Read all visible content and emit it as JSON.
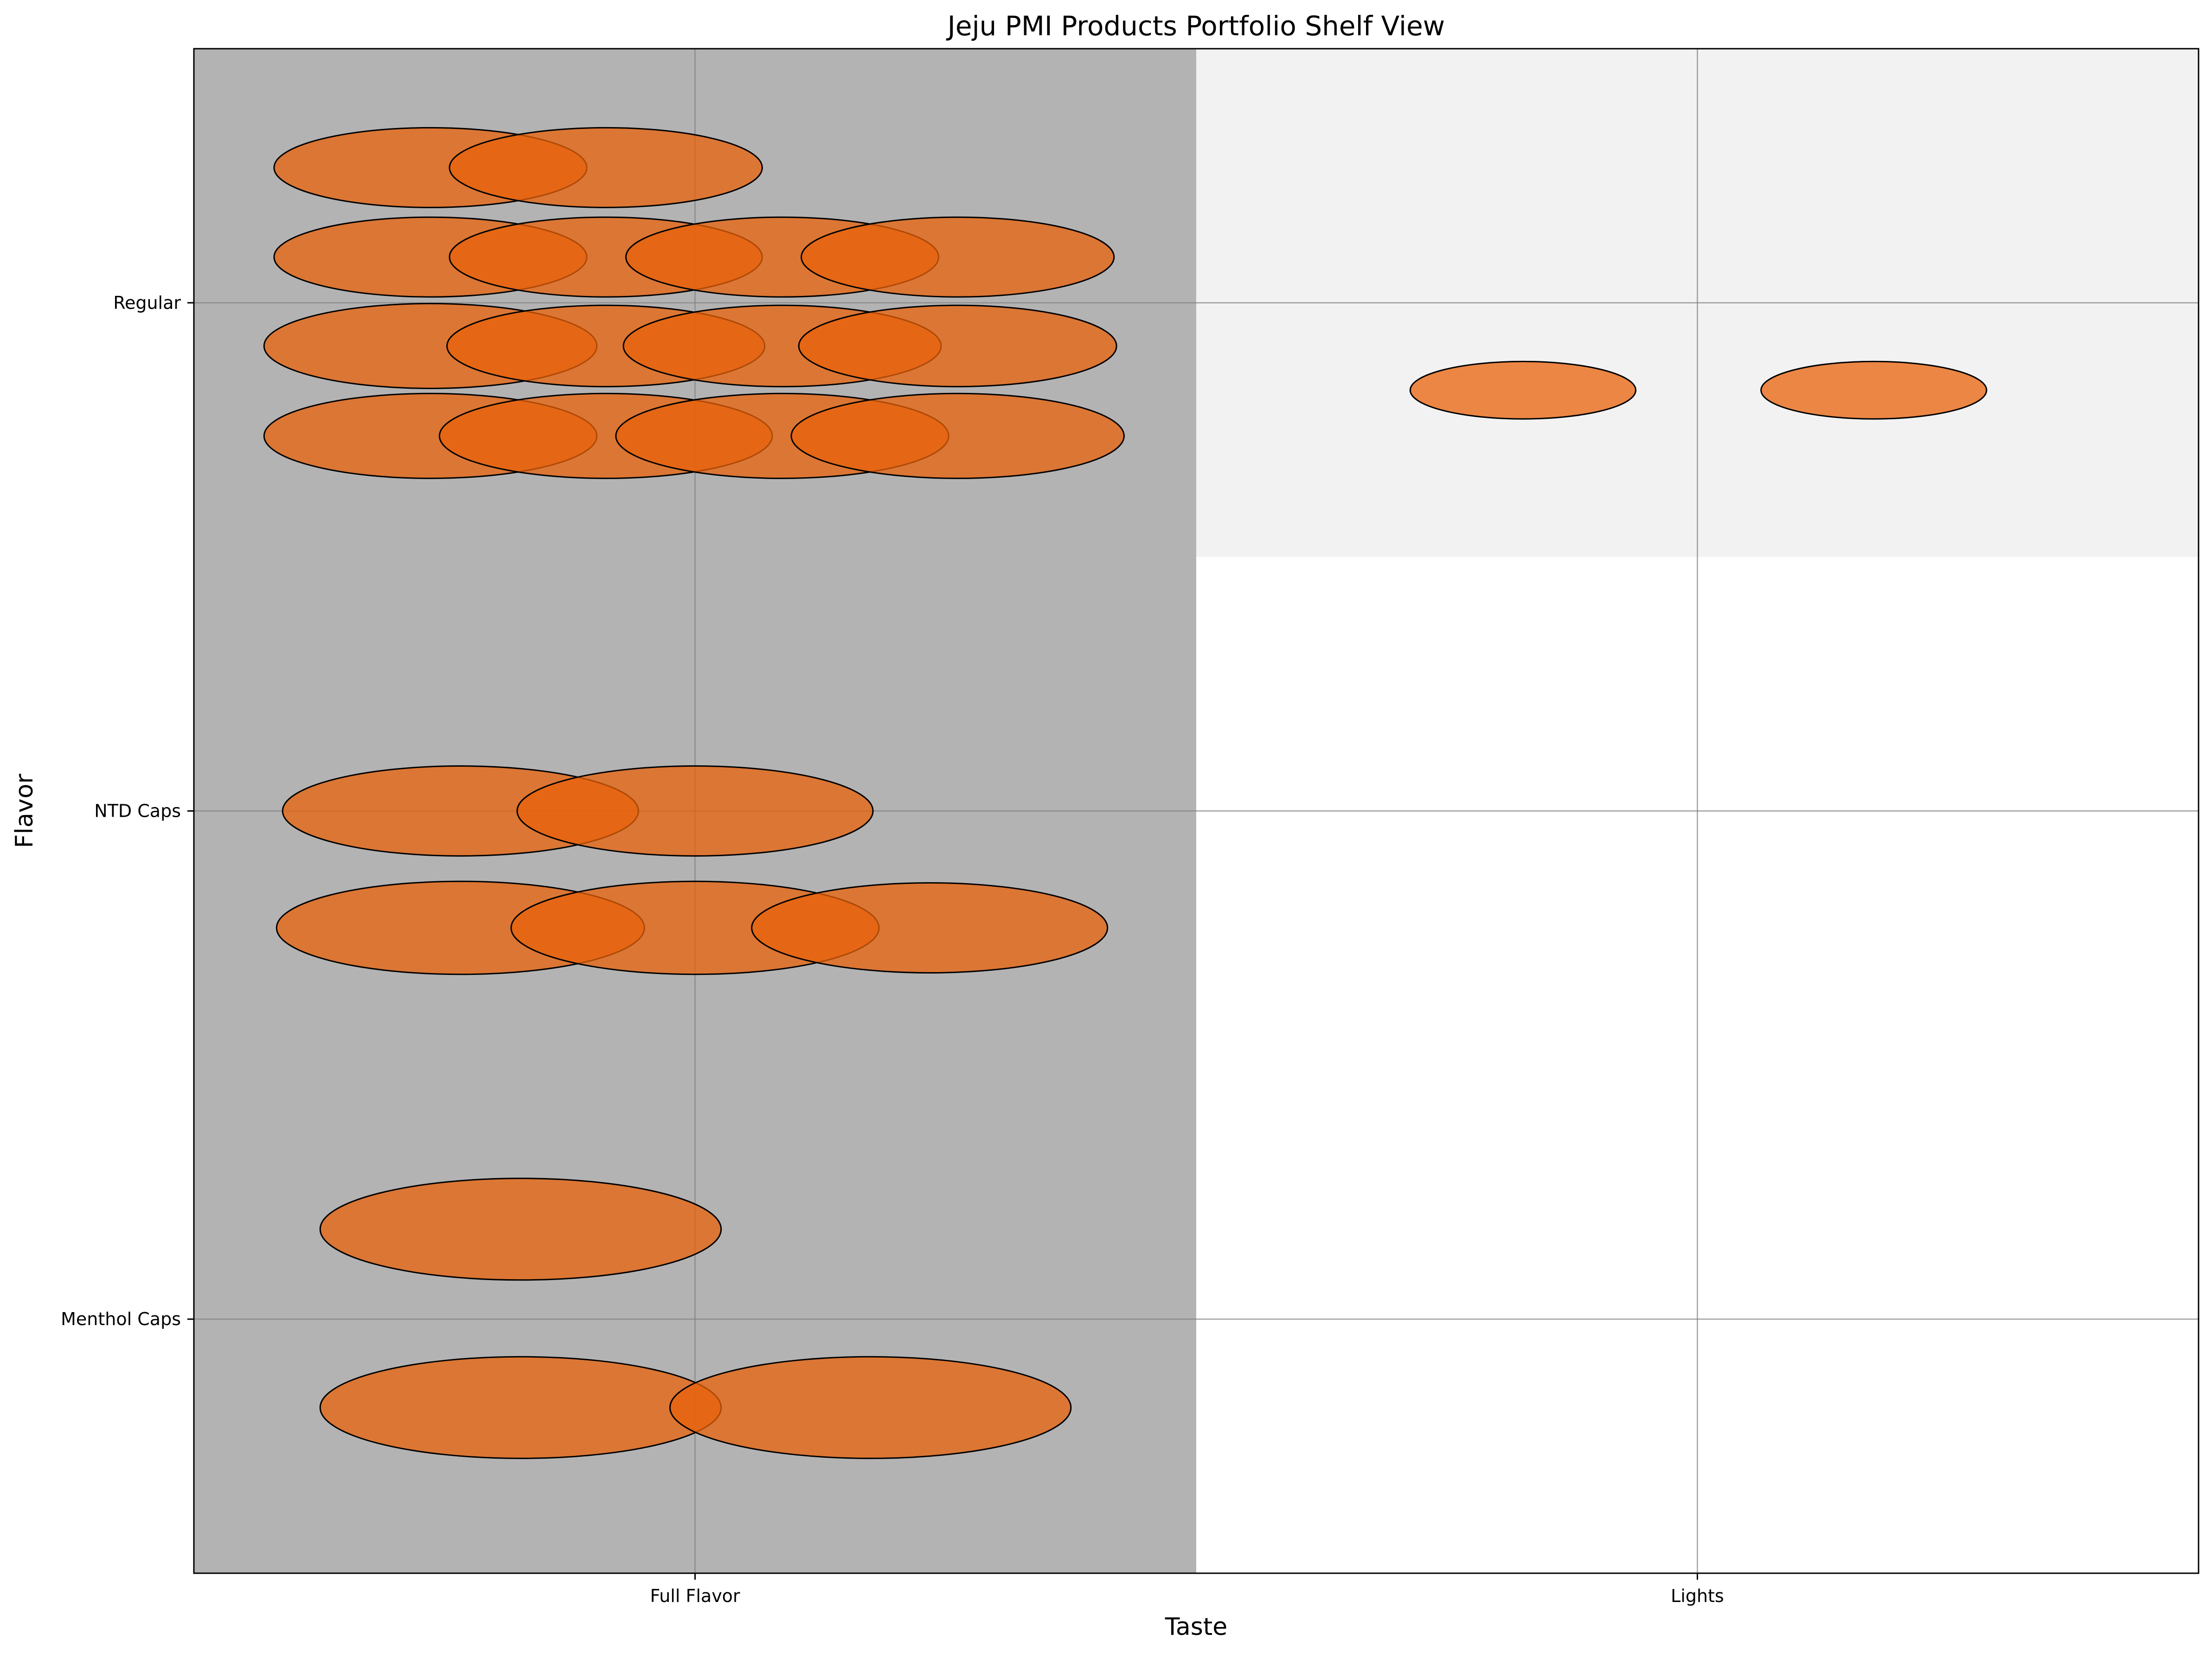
{
  "chart_data": {
    "type": "scatter",
    "title": "Jeju PMI Products Portfolio Shelf View",
    "xlabel": "Taste",
    "ylabel": "Flavor",
    "x_categories": [
      "Full Flavor",
      "Lights"
    ],
    "y_categories": [
      "Menthol Caps",
      "NTD Caps",
      "Regular"
    ],
    "xlim": [
      -0.5,
      1.5
    ],
    "ylim": [
      -0.5,
      2.5
    ],
    "grid": true,
    "colors": {
      "marker_fill": "#e8620a",
      "marker_edge": "#000000",
      "full_flavor_background": "#b3b3b3",
      "lights_regular_background": "#f2f2f2",
      "plot_background": "#ffffff",
      "grid": "#808080"
    },
    "background_regions": [
      {
        "x_range": [
          -0.5,
          0.5
        ],
        "y_range": [
          -0.5,
          2.5
        ],
        "color": "#b3b3b3"
      },
      {
        "x_range": [
          0.5,
          1.5
        ],
        "y_range": [
          1.5,
          2.5
        ],
        "color": "#f2f2f2"
      }
    ],
    "products": [
      {
        "taste": "Full Flavor",
        "flavor": "Regular",
        "x": -0.264,
        "y": 2.266,
        "w": 0.312,
        "h": 0.157,
        "alpha": 0.75
      },
      {
        "taste": "Full Flavor",
        "flavor": "Regular",
        "x": -0.089,
        "y": 2.266,
        "w": 0.312,
        "h": 0.157,
        "alpha": 0.75
      },
      {
        "taste": "Full Flavor",
        "flavor": "Regular",
        "x": -0.264,
        "y": 2.09,
        "w": 0.312,
        "h": 0.157,
        "alpha": 0.75
      },
      {
        "taste": "Full Flavor",
        "flavor": "Regular",
        "x": -0.089,
        "y": 2.09,
        "w": 0.312,
        "h": 0.157,
        "alpha": 0.75
      },
      {
        "taste": "Full Flavor",
        "flavor": "Regular",
        "x": 0.087,
        "y": 2.09,
        "w": 0.312,
        "h": 0.157,
        "alpha": 0.75
      },
      {
        "taste": "Full Flavor",
        "flavor": "Regular",
        "x": 0.262,
        "y": 2.09,
        "w": 0.312,
        "h": 0.157,
        "alpha": 0.75
      },
      {
        "taste": "Full Flavor",
        "flavor": "Regular",
        "x": -0.264,
        "y": 1.915,
        "w": 0.332,
        "h": 0.167,
        "alpha": 0.75
      },
      {
        "taste": "Full Flavor",
        "flavor": "Regular",
        "x": -0.089,
        "y": 1.915,
        "w": 0.317,
        "h": 0.16,
        "alpha": 0.75
      },
      {
        "taste": "Full Flavor",
        "flavor": "Regular",
        "x": 0.087,
        "y": 1.915,
        "w": 0.317,
        "h": 0.16,
        "alpha": 0.75
      },
      {
        "taste": "Full Flavor",
        "flavor": "Regular",
        "x": 0.262,
        "y": 1.915,
        "w": 0.317,
        "h": 0.16,
        "alpha": 0.75
      },
      {
        "taste": "Full Flavor",
        "flavor": "Regular",
        "x": -0.264,
        "y": 1.738,
        "w": 0.332,
        "h": 0.167,
        "alpha": 0.75
      },
      {
        "taste": "Full Flavor",
        "flavor": "Regular",
        "x": -0.089,
        "y": 1.738,
        "w": 0.332,
        "h": 0.167,
        "alpha": 0.75
      },
      {
        "taste": "Full Flavor",
        "flavor": "Regular",
        "x": 0.087,
        "y": 1.738,
        "w": 0.332,
        "h": 0.167,
        "alpha": 0.75
      },
      {
        "taste": "Full Flavor",
        "flavor": "Regular",
        "x": 0.262,
        "y": 1.738,
        "w": 0.332,
        "h": 0.167,
        "alpha": 0.75
      },
      {
        "taste": "Lights",
        "flavor": "Regular",
        "x": 0.826,
        "y": 1.828,
        "w": 0.225,
        "h": 0.113,
        "alpha": 0.75
      },
      {
        "taste": "Lights",
        "flavor": "Regular",
        "x": 1.176,
        "y": 1.828,
        "w": 0.225,
        "h": 0.113,
        "alpha": 0.75
      },
      {
        "taste": "Full Flavor",
        "flavor": "NTD Caps",
        "x": -0.234,
        "y": 1.0,
        "w": 0.355,
        "h": 0.177,
        "alpha": 0.75
      },
      {
        "taste": "Full Flavor",
        "flavor": "NTD Caps",
        "x": 0.0,
        "y": 1.0,
        "w": 0.355,
        "h": 0.177,
        "alpha": 0.75
      },
      {
        "taste": "Full Flavor",
        "flavor": "NTD Caps",
        "x": -0.234,
        "y": 0.77,
        "w": 0.367,
        "h": 0.183,
        "alpha": 0.75
      },
      {
        "taste": "Full Flavor",
        "flavor": "NTD Caps",
        "x": 0.0,
        "y": 0.77,
        "w": 0.367,
        "h": 0.183,
        "alpha": 0.75
      },
      {
        "taste": "Full Flavor",
        "flavor": "NTD Caps",
        "x": 0.234,
        "y": 0.77,
        "w": 0.355,
        "h": 0.177,
        "alpha": 0.75
      },
      {
        "taste": "Full Flavor",
        "flavor": "Menthol Caps",
        "x": -0.174,
        "y": 0.177,
        "w": 0.4,
        "h": 0.2,
        "alpha": 0.75
      },
      {
        "taste": "Full Flavor",
        "flavor": "Menthol Caps",
        "x": -0.174,
        "y": -0.174,
        "w": 0.4,
        "h": 0.2,
        "alpha": 0.75
      },
      {
        "taste": "Full Flavor",
        "flavor": "Menthol Caps",
        "x": 0.175,
        "y": -0.174,
        "w": 0.4,
        "h": 0.2,
        "alpha": 0.75
      }
    ]
  }
}
